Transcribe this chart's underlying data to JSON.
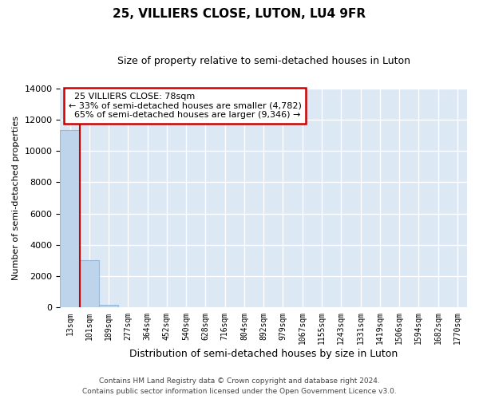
{
  "title": "25, VILLIERS CLOSE, LUTON, LU4 9FR",
  "subtitle": "Size of property relative to semi-detached houses in Luton",
  "xlabel": "Distribution of semi-detached houses by size in Luton",
  "ylabel": "Number of semi-detached properties",
  "categories": [
    "13sqm",
    "101sqm",
    "189sqm",
    "277sqm",
    "364sqm",
    "452sqm",
    "540sqm",
    "628sqm",
    "716sqm",
    "804sqm",
    "892sqm",
    "979sqm",
    "1067sqm",
    "1155sqm",
    "1243sqm",
    "1331sqm",
    "1419sqm",
    "1506sqm",
    "1594sqm",
    "1682sqm",
    "1770sqm"
  ],
  "values": [
    11350,
    3050,
    180,
    0,
    0,
    0,
    0,
    0,
    0,
    0,
    0,
    0,
    0,
    0,
    0,
    0,
    0,
    0,
    0,
    0,
    0
  ],
  "bar_color": "#bdd4ea",
  "bar_edge_color": "#9ab9d8",
  "property_label": "25 VILLIERS CLOSE: 78sqm",
  "pct_smaller": 33,
  "n_smaller": 4782,
  "pct_larger": 65,
  "n_larger": 9346,
  "vline_color": "#cc0000",
  "annotation_box_color": "#ffffff",
  "annotation_box_edge": "#cc0000",
  "ylim": [
    0,
    14000
  ],
  "yticks": [
    0,
    2000,
    4000,
    6000,
    8000,
    10000,
    12000,
    14000
  ],
  "bg_color": "#dde8f5",
  "grid_color": "#ffffff",
  "footer1": "Contains HM Land Registry data © Crown copyright and database right 2024.",
  "footer2": "Contains public sector information licensed under the Open Government Licence v3.0."
}
